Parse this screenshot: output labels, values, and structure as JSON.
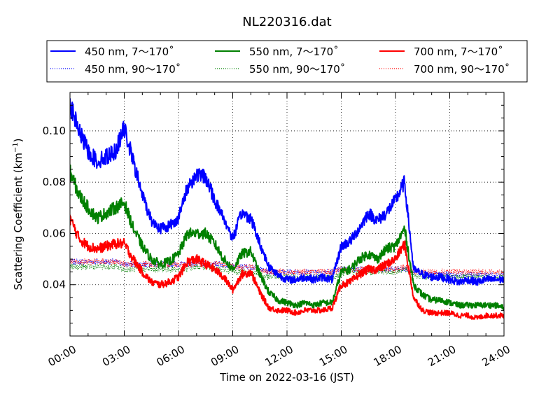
{
  "chart_data": {
    "type": "line",
    "title": "NL220316.dat",
    "xlabel": "Time on 2022-03-16 (JST)",
    "ylabel": "Scattering Coefficient (km",
    "ylabel_sup": "−1",
    "ylabel_end": ")",
    "xlim": [
      0,
      24
    ],
    "ylim": [
      0.02,
      0.115
    ],
    "grid": true,
    "legend_position": "top",
    "x_ticks": [
      {
        "value": 0,
        "label": "00:00"
      },
      {
        "value": 3,
        "label": "03:00"
      },
      {
        "value": 6,
        "label": "06:00"
      },
      {
        "value": 9,
        "label": "09:00"
      },
      {
        "value": 12,
        "label": "12:00"
      },
      {
        "value": 15,
        "label": "15:00"
      },
      {
        "value": 18,
        "label": "18:00"
      },
      {
        "value": 21,
        "label": "21:00"
      },
      {
        "value": 24,
        "label": "24:00"
      }
    ],
    "y_ticks": [
      {
        "value": 0.04,
        "label": "0.04"
      },
      {
        "value": 0.06,
        "label": "0.06"
      },
      {
        "value": 0.08,
        "label": "0.08"
      },
      {
        "value": 0.1,
        "label": "0.10"
      }
    ],
    "x": [
      0,
      0.5,
      1,
      1.5,
      2,
      2.5,
      3,
      3.5,
      4,
      4.5,
      5,
      5.5,
      6,
      6.5,
      7,
      7.5,
      8,
      8.5,
      9,
      9.5,
      10,
      10.5,
      11,
      11.5,
      12,
      12.5,
      13,
      13.5,
      14,
      14.5,
      15,
      15.5,
      16,
      16.5,
      17,
      17.5,
      18,
      18.5,
      19,
      19.5,
      20,
      20.5,
      21,
      21.5,
      22,
      22.5,
      23,
      23.5,
      24
    ],
    "series": [
      {
        "name": "450 nm, 7～170˚",
        "color": "#0000ff",
        "style": "solid",
        "values": [
          0.11,
          0.1,
          0.092,
          0.088,
          0.09,
          0.092,
          0.101,
          0.088,
          0.075,
          0.065,
          0.062,
          0.063,
          0.066,
          0.078,
          0.083,
          0.082,
          0.073,
          0.066,
          0.058,
          0.068,
          0.066,
          0.056,
          0.047,
          0.044,
          0.042,
          0.042,
          0.043,
          0.042,
          0.043,
          0.042,
          0.055,
          0.057,
          0.062,
          0.068,
          0.065,
          0.068,
          0.073,
          0.08,
          0.046,
          0.044,
          0.043,
          0.043,
          0.042,
          0.041,
          0.042,
          0.041,
          0.042,
          0.042,
          0.042
        ]
      },
      {
        "name": "450 nm, 90～170˚",
        "color": "#0000ff",
        "style": "dotted",
        "values": [
          0.049,
          0.049,
          0.049,
          0.049,
          0.049,
          0.049,
          0.048,
          0.048,
          0.048,
          0.048,
          0.048,
          0.048,
          0.048,
          0.048,
          0.048,
          0.048,
          0.048,
          0.048,
          0.047,
          0.047,
          0.047,
          0.046,
          0.045,
          0.045,
          0.045,
          0.045,
          0.045,
          0.045,
          0.045,
          0.045,
          0.046,
          0.046,
          0.046,
          0.046,
          0.046,
          0.046,
          0.046,
          0.046,
          0.045,
          0.045,
          0.044,
          0.044,
          0.044,
          0.044,
          0.044,
          0.044,
          0.044,
          0.044,
          0.044
        ]
      },
      {
        "name": "550 nm, 7～170˚",
        "color": "#008000",
        "style": "solid",
        "values": [
          0.084,
          0.075,
          0.07,
          0.066,
          0.068,
          0.07,
          0.072,
          0.062,
          0.055,
          0.05,
          0.048,
          0.049,
          0.052,
          0.06,
          0.06,
          0.06,
          0.056,
          0.05,
          0.046,
          0.052,
          0.053,
          0.044,
          0.037,
          0.034,
          0.033,
          0.032,
          0.033,
          0.032,
          0.033,
          0.033,
          0.045,
          0.046,
          0.05,
          0.052,
          0.05,
          0.054,
          0.055,
          0.062,
          0.04,
          0.036,
          0.034,
          0.034,
          0.033,
          0.032,
          0.032,
          0.032,
          0.032,
          0.032,
          0.031
        ]
      },
      {
        "name": "550 nm, 90～170˚",
        "color": "#008000",
        "style": "dotted",
        "values": [
          0.047,
          0.047,
          0.047,
          0.047,
          0.047,
          0.047,
          0.046,
          0.046,
          0.046,
          0.046,
          0.046,
          0.046,
          0.046,
          0.046,
          0.047,
          0.047,
          0.046,
          0.046,
          0.045,
          0.045,
          0.045,
          0.044,
          0.043,
          0.043,
          0.043,
          0.043,
          0.043,
          0.043,
          0.043,
          0.043,
          0.044,
          0.045,
          0.045,
          0.045,
          0.045,
          0.045,
          0.045,
          0.046,
          0.044,
          0.043,
          0.043,
          0.043,
          0.043,
          0.043,
          0.043,
          0.043,
          0.043,
          0.043,
          0.043
        ]
      },
      {
        "name": "700 nm, 7～170˚",
        "color": "#ff0000",
        "style": "solid",
        "values": [
          0.066,
          0.058,
          0.055,
          0.054,
          0.055,
          0.056,
          0.056,
          0.05,
          0.045,
          0.041,
          0.04,
          0.041,
          0.043,
          0.049,
          0.05,
          0.048,
          0.046,
          0.043,
          0.038,
          0.044,
          0.045,
          0.037,
          0.031,
          0.03,
          0.03,
          0.029,
          0.03,
          0.03,
          0.03,
          0.031,
          0.04,
          0.041,
          0.044,
          0.046,
          0.046,
          0.048,
          0.05,
          0.056,
          0.035,
          0.03,
          0.029,
          0.029,
          0.029,
          0.028,
          0.028,
          0.027,
          0.028,
          0.028,
          0.028
        ]
      },
      {
        "name": "700 nm, 90～170˚",
        "color": "#ff0000",
        "style": "dotted",
        "values": [
          0.049,
          0.049,
          0.049,
          0.049,
          0.049,
          0.049,
          0.048,
          0.048,
          0.048,
          0.048,
          0.048,
          0.048,
          0.048,
          0.048,
          0.048,
          0.048,
          0.048,
          0.048,
          0.047,
          0.047,
          0.047,
          0.046,
          0.045,
          0.045,
          0.045,
          0.045,
          0.045,
          0.045,
          0.045,
          0.045,
          0.046,
          0.046,
          0.046,
          0.046,
          0.046,
          0.046,
          0.046,
          0.047,
          0.045,
          0.045,
          0.045,
          0.045,
          0.045,
          0.045,
          0.045,
          0.045,
          0.045,
          0.045,
          0.045
        ]
      }
    ]
  }
}
